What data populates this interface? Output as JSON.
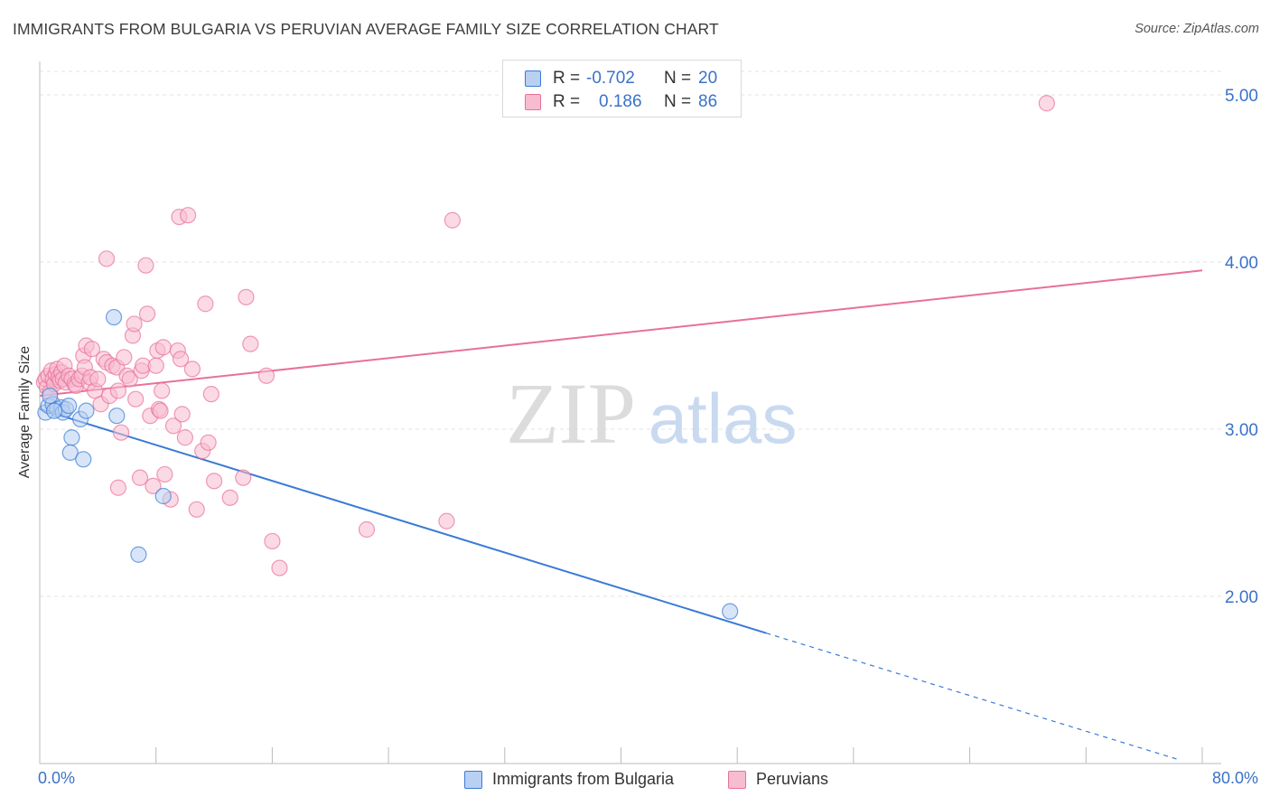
{
  "title": "IMMIGRANTS FROM BULGARIA VS PERUVIAN AVERAGE FAMILY SIZE CORRELATION CHART",
  "source": "Source: ZipAtlas.com",
  "watermark": {
    "zip": "ZIP",
    "atlas": "atlas"
  },
  "legend": {
    "r_label": "R =",
    "n_label": "N =",
    "rows": [
      {
        "r": "-0.702",
        "n": "20"
      },
      {
        "r": "0.186",
        "n": "86"
      }
    ]
  },
  "colors": {
    "blue": "#3a7bd5",
    "blue_fill": "#b8d0f2",
    "pink": "#e8709a",
    "pink_fill": "#f7bcd0",
    "axis_text": "#3a72c8",
    "grid": "#e3e3e3"
  },
  "chart_data": {
    "type": "scatter",
    "title": "IMMIGRANTS FROM BULGARIA VS PERUVIAN AVERAGE FAMILY SIZE CORRELATION CHART",
    "xlabel": "",
    "ylabel": "Average Family Size",
    "xlim": [
      0,
      80
    ],
    "ylim": [
      1.0,
      5.2
    ],
    "x_tick_labels": [
      "0.0%",
      "80.0%"
    ],
    "y_ticks": [
      2.0,
      3.0,
      4.0,
      5.0
    ],
    "y_tick_labels": [
      "2.00",
      "3.00",
      "4.00",
      "5.00"
    ],
    "grid": true,
    "legend_placement": "top-center",
    "series": [
      {
        "name": "Immigrants from Bulgaria",
        "color": "#3a7bd5",
        "points": [
          [
            0.4,
            3.1
          ],
          [
            0.6,
            3.14
          ],
          [
            0.9,
            3.15
          ],
          [
            1.2,
            3.12
          ],
          [
            1.5,
            3.13
          ],
          [
            1.6,
            3.1
          ],
          [
            1.8,
            3.12
          ],
          [
            2.0,
            3.14
          ],
          [
            2.2,
            2.95
          ],
          [
            2.1,
            2.86
          ],
          [
            2.8,
            3.06
          ],
          [
            3.0,
            2.82
          ],
          [
            3.2,
            3.11
          ],
          [
            5.1,
            3.67
          ],
          [
            5.3,
            3.08
          ],
          [
            6.8,
            2.25
          ],
          [
            8.5,
            2.6
          ],
          [
            47.5,
            1.91
          ],
          [
            0.7,
            3.2
          ],
          [
            1.0,
            3.11
          ]
        ],
        "trend": {
          "x0": 0,
          "y0": 3.12,
          "x1": 50,
          "y1": 1.78,
          "dashed_to_x": 78.5,
          "dashed_to_y": 1.02
        }
      },
      {
        "name": "Peruvians",
        "color": "#e8709a",
        "points": [
          [
            0.3,
            3.28
          ],
          [
            0.4,
            3.3
          ],
          [
            0.5,
            3.25
          ],
          [
            0.6,
            3.32
          ],
          [
            0.7,
            3.22
          ],
          [
            0.8,
            3.35
          ],
          [
            0.9,
            3.3
          ],
          [
            1.0,
            3.27
          ],
          [
            1.1,
            3.33
          ],
          [
            1.2,
            3.36
          ],
          [
            1.3,
            3.31
          ],
          [
            1.4,
            3.29
          ],
          [
            1.5,
            3.34
          ],
          [
            1.6,
            3.3
          ],
          [
            1.7,
            3.38
          ],
          [
            1.8,
            3.28
          ],
          [
            2.0,
            3.32
          ],
          [
            2.2,
            3.3
          ],
          [
            2.4,
            3.27
          ],
          [
            2.5,
            3.26
          ],
          [
            2.7,
            3.3
          ],
          [
            2.9,
            3.32
          ],
          [
            3.0,
            3.44
          ],
          [
            3.1,
            3.37
          ],
          [
            3.2,
            3.5
          ],
          [
            3.4,
            3.28
          ],
          [
            3.5,
            3.31
          ],
          [
            3.6,
            3.48
          ],
          [
            3.8,
            3.23
          ],
          [
            4.0,
            3.3
          ],
          [
            4.2,
            3.15
          ],
          [
            4.4,
            3.42
          ],
          [
            4.6,
            3.4
          ],
          [
            4.8,
            3.2
          ],
          [
            4.6,
            4.02
          ],
          [
            5.0,
            3.38
          ],
          [
            5.3,
            3.37
          ],
          [
            5.4,
            3.23
          ],
          [
            5.6,
            2.98
          ],
          [
            5.8,
            3.43
          ],
          [
            6.0,
            3.32
          ],
          [
            6.2,
            3.3
          ],
          [
            6.4,
            3.56
          ],
          [
            6.5,
            3.63
          ],
          [
            6.6,
            3.18
          ],
          [
            6.9,
            2.71
          ],
          [
            7.0,
            3.35
          ],
          [
            7.1,
            3.38
          ],
          [
            7.3,
            3.98
          ],
          [
            7.4,
            3.69
          ],
          [
            7.6,
            3.08
          ],
          [
            7.8,
            2.66
          ],
          [
            8.0,
            3.38
          ],
          [
            8.1,
            3.47
          ],
          [
            8.2,
            3.12
          ],
          [
            8.3,
            3.11
          ],
          [
            8.4,
            3.23
          ],
          [
            8.5,
            3.49
          ],
          [
            8.6,
            2.73
          ],
          [
            9.0,
            2.58
          ],
          [
            9.2,
            3.02
          ],
          [
            9.5,
            3.47
          ],
          [
            9.6,
            4.27
          ],
          [
            9.7,
            3.42
          ],
          [
            9.8,
            3.09
          ],
          [
            10.0,
            2.95
          ],
          [
            10.2,
            4.28
          ],
          [
            10.5,
            3.36
          ],
          [
            10.8,
            2.52
          ],
          [
            11.2,
            2.87
          ],
          [
            11.4,
            3.75
          ],
          [
            11.6,
            2.92
          ],
          [
            11.8,
            3.21
          ],
          [
            12.0,
            2.69
          ],
          [
            13.1,
            2.59
          ],
          [
            14.0,
            2.71
          ],
          [
            14.2,
            3.79
          ],
          [
            14.5,
            3.51
          ],
          [
            15.6,
            3.32
          ],
          [
            16.0,
            2.33
          ],
          [
            16.5,
            2.17
          ],
          [
            22.5,
            2.4
          ],
          [
            28.0,
            2.45
          ],
          [
            28.4,
            4.25
          ],
          [
            69.3,
            4.95
          ],
          [
            5.4,
            2.65
          ]
        ],
        "trend": {
          "x0": 0,
          "y0": 3.2,
          "x1": 80,
          "y1": 3.95
        }
      }
    ]
  }
}
